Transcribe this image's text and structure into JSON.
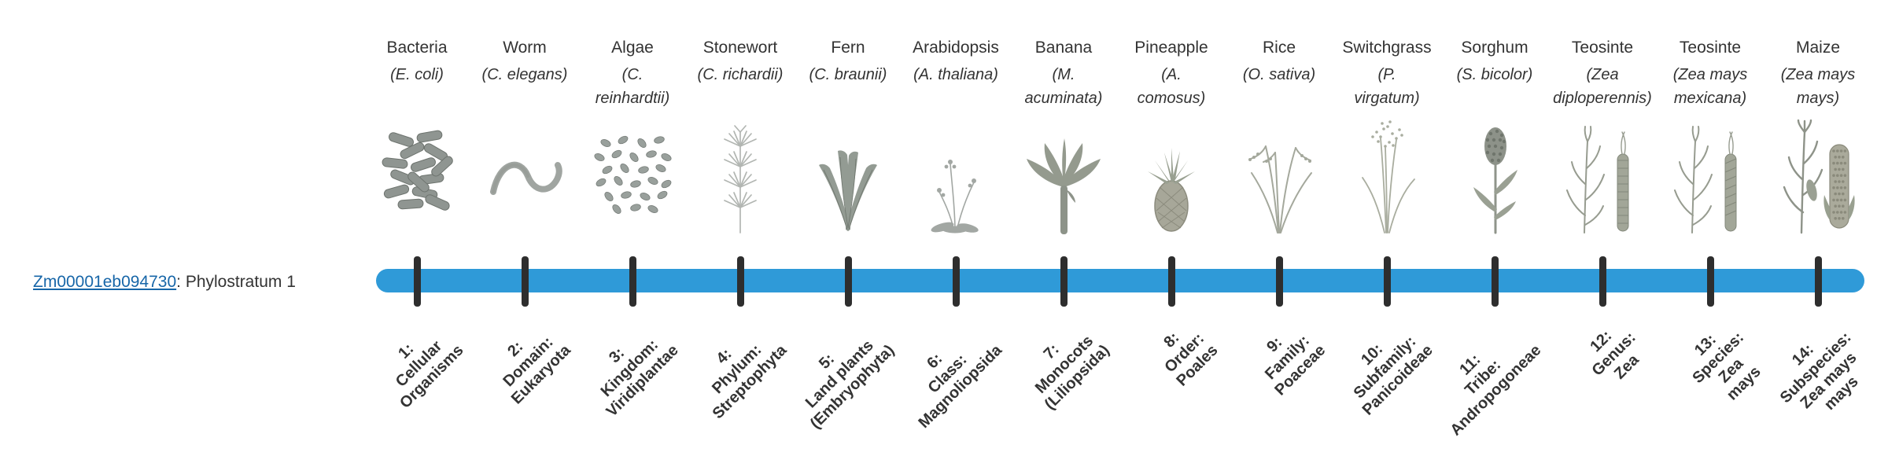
{
  "figure": {
    "gene_id": "Zm00001eb094730",
    "suffix": ": Phylostratum 1"
  },
  "colors": {
    "bar": "#2f9ad8",
    "tick": "#2e2e2e",
    "link": "#1766a8",
    "text": "#333333"
  },
  "strata": [
    {
      "organism": "Bacteria",
      "species": "(E. coli)",
      "icon": "bacteria",
      "stratum": "1:\nCellular\nOrganisms"
    },
    {
      "organism": "Worm",
      "species": "(C. elegans)",
      "icon": "worm",
      "stratum": "2:\nDomain:\nEukaryota"
    },
    {
      "organism": "Algae",
      "species": "(C.\nreinhardtii)",
      "icon": "algae",
      "stratum": "3:\nKingdom:\nViridiplantae"
    },
    {
      "organism": "Stonewort",
      "species": "(C. richardii)",
      "icon": "stonewort",
      "stratum": "4:\nPhylum:\nStreptophyta"
    },
    {
      "organism": "Fern",
      "species": "(C. braunii)",
      "icon": "fern",
      "stratum": "5:\nLand plants\n(Embryophyta)"
    },
    {
      "organism": "Arabidopsis",
      "species": "(A. thaliana)",
      "icon": "arabidopsis",
      "stratum": "6:\nClass:\nMagnoliopsida"
    },
    {
      "organism": "Banana",
      "species": "(M.\nacuminata)",
      "icon": "banana",
      "stratum": "7:\nMonocots\n(Liliopsida)"
    },
    {
      "organism": "Pineapple",
      "species": "(A.\ncomosus)",
      "icon": "pineapple",
      "stratum": "8:\nOrder:\nPoales"
    },
    {
      "organism": "Rice",
      "species": "(O. sativa)",
      "icon": "rice",
      "stratum": "9:\nFamily:\nPoaceae"
    },
    {
      "organism": "Switchgrass",
      "species": "(P.\nvirgatum)",
      "icon": "switchgrass",
      "stratum": "10:\nSubfamily:\nPanicoideae"
    },
    {
      "organism": "Sorghum",
      "species": "(S. bicolor)",
      "icon": "sorghum",
      "stratum": "11:\nTribe:\nAndropogoneae"
    },
    {
      "organism": "Teosinte",
      "species": "(Zea\ndiploperennis)",
      "icon": "teosinte",
      "stratum": "12:\nGenus:\nZea"
    },
    {
      "organism": "Teosinte",
      "species": "(Zea mays\nmexicana)",
      "icon": "teosinte-mexicana",
      "stratum": "13:\nSpecies:\nZea\nmays"
    },
    {
      "organism": "Maize",
      "species": "(Zea mays\nmays)",
      "icon": "maize",
      "stratum": "14:\nSubspecies:\nZea mays\nmays"
    }
  ]
}
